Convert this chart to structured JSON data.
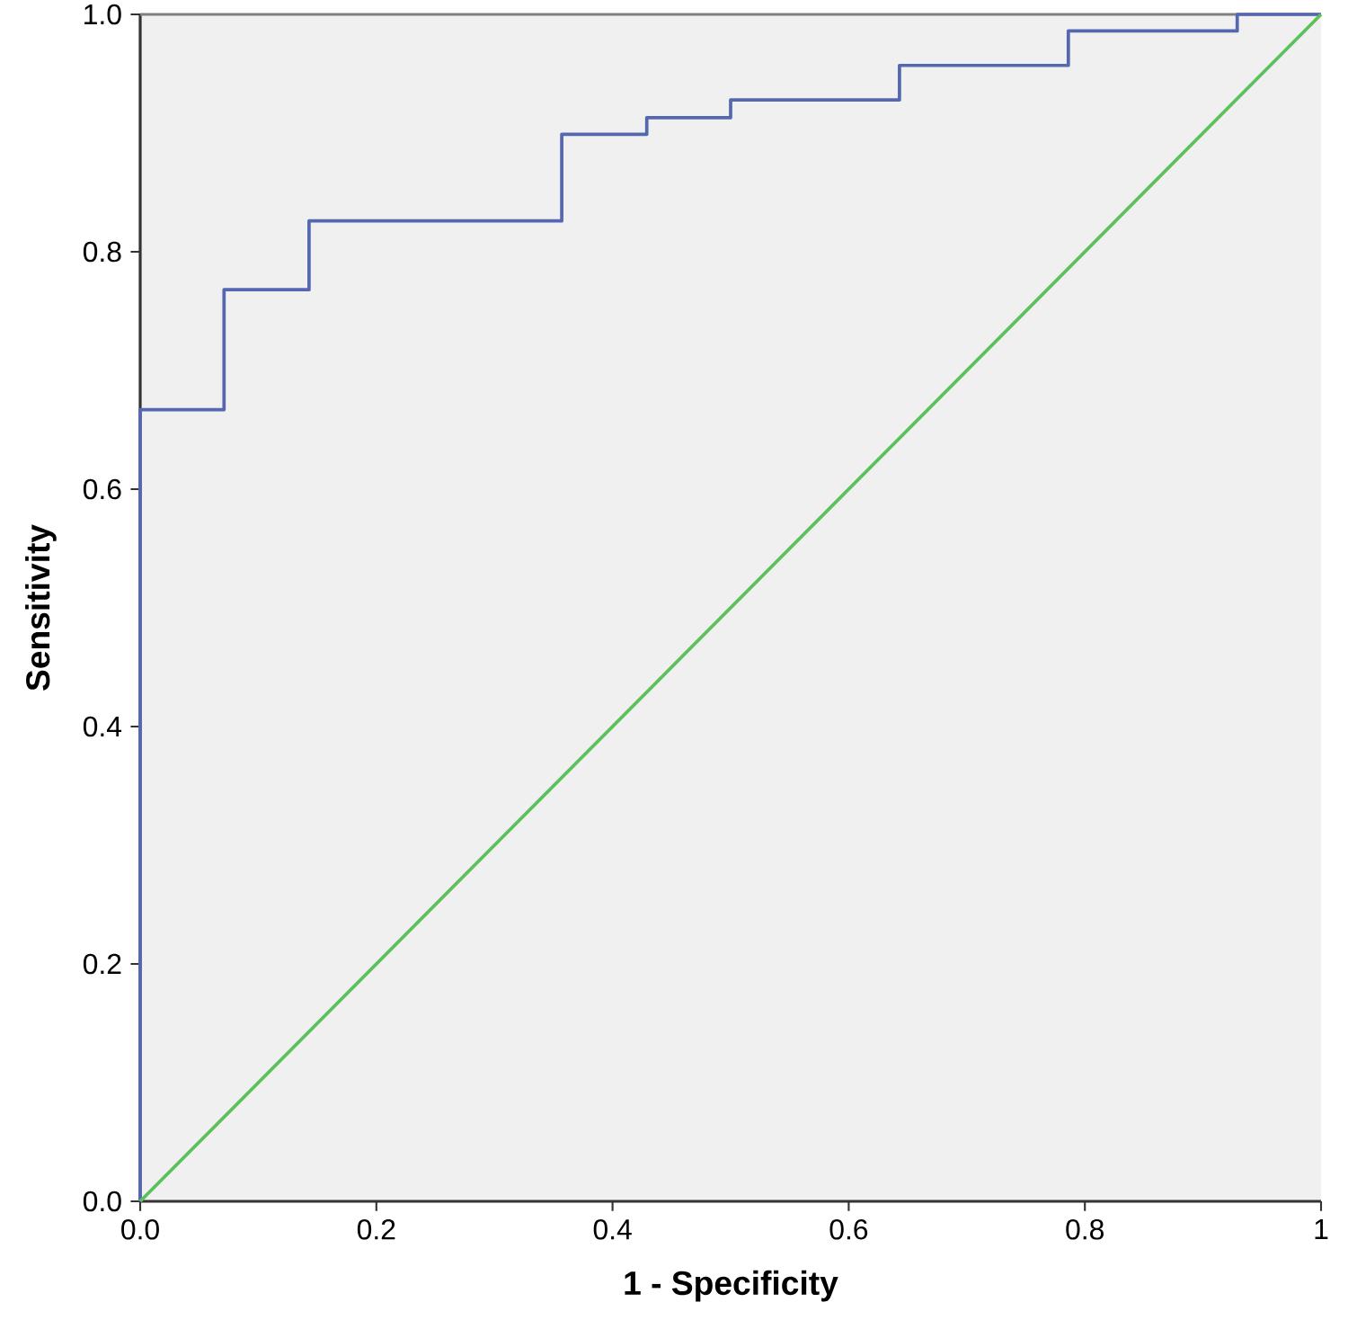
{
  "chart_data": {
    "type": "step",
    "xlabel": "1 - Specificity",
    "ylabel": "Sensitivity",
    "xlim": [
      0,
      1
    ],
    "ylim": [
      0,
      1
    ],
    "xticks": [
      {
        "value": 0,
        "label": "0.0"
      },
      {
        "value": 0.2,
        "label": "0.2"
      },
      {
        "value": 0.4,
        "label": "0.4"
      },
      {
        "value": 0.6,
        "label": "0.6"
      },
      {
        "value": 0.8,
        "label": "0.8"
      },
      1
    ],
    "yticks": [
      {
        "value": 0,
        "label": "0.0"
      },
      {
        "value": 0.2,
        "label": "0.2"
      },
      {
        "value": 0.4,
        "label": "0.4"
      },
      {
        "value": 0.6,
        "label": "0.6"
      },
      {
        "value": 0.8,
        "label": "0.8"
      },
      {
        "value": 1,
        "label": "1.0"
      }
    ],
    "series": [
      {
        "color": "#5567b0",
        "x": [
          0,
          0,
          0.071,
          0.143,
          0.357,
          0.429,
          0.5,
          0.643,
          0.786,
          0.929,
          1
        ],
        "values": [
          0,
          0.667,
          0.768,
          0.826,
          0.899,
          0.913,
          0.928,
          0.957,
          0.986,
          1,
          1
        ]
      },
      {
        "type": "line",
        "color": "#5cc15c",
        "x": [
          0,
          1
        ],
        "values": [
          0,
          1
        ]
      }
    ]
  }
}
